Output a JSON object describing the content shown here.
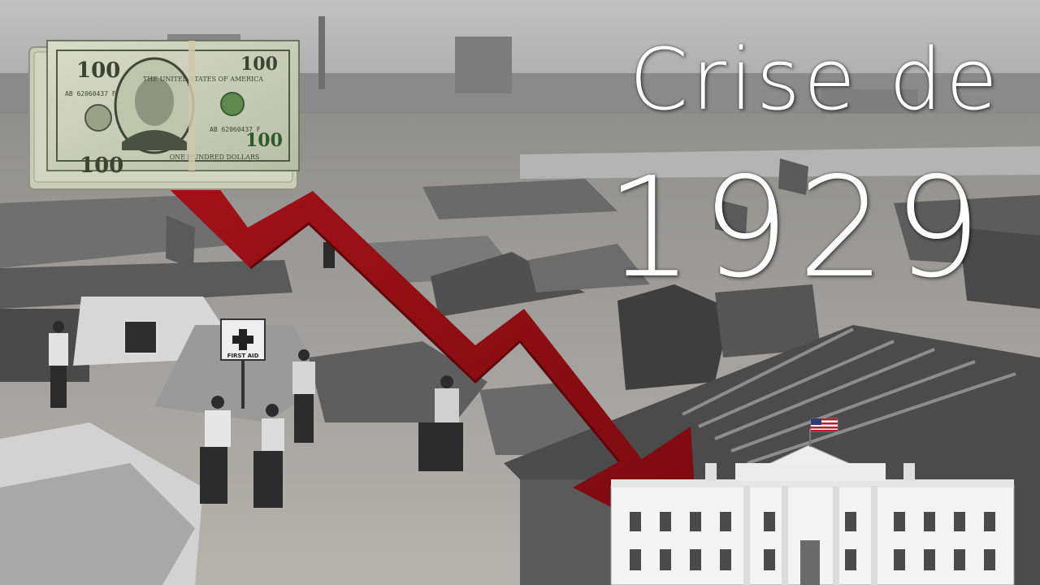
{
  "title": {
    "line1": "Crise de",
    "line2": "1929"
  },
  "banknote": {
    "denomination": "100",
    "series": "AB 62060437 F",
    "header": "THE UNITED STATES OF AMERICA",
    "footer": "ONE HUNDRED DOLLARS"
  },
  "camp_signs": {
    "first_aid": "FIRST AID"
  },
  "colors": {
    "arrow": "#8e0d12",
    "arrow_dark": "#5e070b",
    "title_text": "#ffffff",
    "sky": "#b9b9b9",
    "ground": "#a9a7a3"
  }
}
